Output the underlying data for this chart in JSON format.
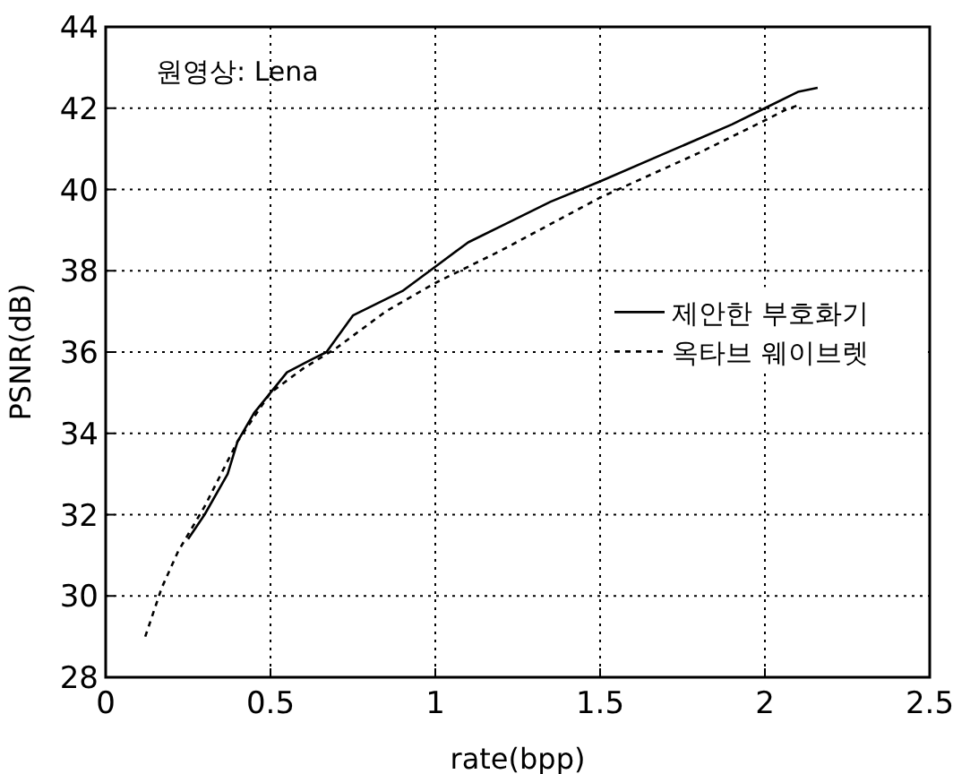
{
  "chart_data": {
    "type": "line",
    "xlabel": "rate(bpp)",
    "ylabel": "PSNR(dB)",
    "annotations": [
      "원영상: Lena"
    ],
    "xlim": [
      0,
      2.5
    ],
    "ylim": [
      28,
      44
    ],
    "xticks": [
      0,
      0.5,
      1,
      1.5,
      2,
      2.5
    ],
    "yticks": [
      28,
      30,
      32,
      34,
      36,
      38,
      40,
      42,
      44
    ],
    "grid": true,
    "legend": "right",
    "series": [
      {
        "name": "제안한 부호화기",
        "color": "#000000",
        "line_style": "solid",
        "x": [
          0.25,
          0.3,
          0.37,
          0.4,
          0.45,
          0.5,
          0.55,
          0.62,
          0.67,
          0.75,
          0.9,
          1.0,
          1.1,
          1.2,
          1.35,
          1.5,
          1.7,
          1.9,
          2.0,
          2.1,
          2.16
        ],
        "values": [
          31.4,
          32,
          33,
          33.8,
          34.5,
          35,
          35.5,
          35.8,
          36,
          36.9,
          37.5,
          38.1,
          38.7,
          39.1,
          39.7,
          40.2,
          40.9,
          41.6,
          42,
          42.4,
          42.5
        ]
      },
      {
        "name": "옥타브 웨이브렛",
        "color": "#000000",
        "line_style": "dotted",
        "x": [
          0.12,
          0.17,
          0.22,
          0.3,
          0.4,
          0.5,
          0.6,
          0.7,
          0.85,
          1.0,
          1.2,
          1.5,
          1.8,
          2.0,
          2.06,
          2.11
        ],
        "values": [
          29,
          30.2,
          31.1,
          32.2,
          33.8,
          35,
          35.6,
          36.1,
          37,
          37.7,
          38.5,
          39.8,
          40.9,
          41.7,
          41.95,
          42.1
        ]
      }
    ]
  }
}
